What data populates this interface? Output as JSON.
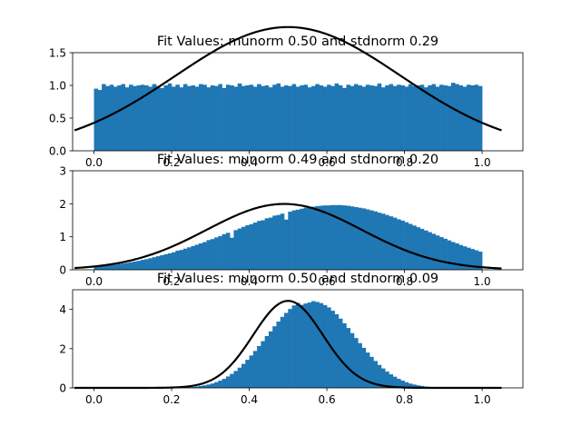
{
  "chart_data": [
    {
      "type": "bar",
      "subtype": "histogram-with-fit",
      "title": "Fit Values: munorm 0.50 and stdnorm 0.29",
      "mu": 0.5,
      "sigma": 0.29,
      "fit_scale": 1.375,
      "xlim": [
        -0.055,
        1.105
      ],
      "ylim": [
        0,
        1.5
      ],
      "xticks": [
        0.0,
        0.2,
        0.4,
        0.6,
        0.8,
        1.0
      ],
      "xtick_labels": [
        "0.0",
        "0.2",
        "0.4",
        "0.6",
        "0.8",
        "1.0"
      ],
      "yticks": [
        0.0,
        0.5,
        1.0,
        1.5
      ],
      "ytick_labels": [
        "0.0",
        "0.5",
        "1.0",
        "1.5"
      ],
      "bins": {
        "start": 0.0,
        "width": 0.01
      },
      "values": [
        0.95,
        0.93,
        1.02,
        0.99,
        1.01,
        0.98,
        1.0,
        1.02,
        0.97,
        1.01,
        0.99,
        1.0,
        1.01,
        1.0,
        0.98,
        1.02,
        0.99,
        0.96,
        1.0,
        1.03,
        0.98,
        1.01,
        0.97,
        1.02,
        0.99,
        1.0,
        0.98,
        1.02,
        1.01,
        0.97,
        1.0,
        0.99,
        1.02,
        0.96,
        1.01,
        1.0,
        0.98,
        1.03,
        0.99,
        1.0,
        1.01,
        0.98,
        1.02,
        0.99,
        1.0,
        0.97,
        1.01,
        1.03,
        0.98,
        1.0,
        0.99,
        1.02,
        0.98,
        1.0,
        1.01,
        0.97,
        0.99,
        1.02,
        1.0,
        0.98,
        1.01,
        0.99,
        1.03,
        1.0,
        0.96,
        1.01,
        0.99,
        1.02,
        1.0,
        0.98,
        1.01,
        1.0,
        0.99,
        1.03,
        0.97,
        1.0,
        1.02,
        0.99,
        1.01,
        1.0,
        0.98,
        1.02,
        0.99,
        1.0,
        1.01,
        0.97,
        1.0,
        1.02,
        0.98,
        1.01,
        1.0,
        0.99,
        1.04,
        1.02,
        1.0,
        0.98,
        1.01,
        1.0,
        1.01,
        0.99
      ]
    },
    {
      "type": "bar",
      "subtype": "histogram-with-fit",
      "title": "Fit Values: munorm 0.49 and stdnorm 0.20",
      "mu": 0.49,
      "sigma": 0.2,
      "fit_scale": 1.0,
      "xlim": [
        -0.055,
        1.105
      ],
      "ylim": [
        0,
        3
      ],
      "xticks": [
        0.0,
        0.2,
        0.4,
        0.6,
        0.8,
        1.0
      ],
      "xtick_labels": [
        "0.0",
        "0.2",
        "0.4",
        "0.6",
        "0.8",
        "1.0"
      ],
      "yticks": [
        0,
        1,
        2,
        3
      ],
      "ytick_labels": [
        "0",
        "1",
        "2",
        "3"
      ],
      "bins": {
        "start": 0.0,
        "width": 0.01
      },
      "values": [
        0.09,
        0.1,
        0.11,
        0.13,
        0.14,
        0.16,
        0.18,
        0.19,
        0.21,
        0.23,
        0.25,
        0.27,
        0.3,
        0.32,
        0.35,
        0.38,
        0.41,
        0.44,
        0.47,
        0.5,
        0.53,
        0.58,
        0.6,
        0.64,
        0.68,
        0.72,
        0.76,
        0.8,
        0.84,
        0.9,
        0.93,
        0.98,
        1.02,
        1.08,
        1.12,
        0.97,
        1.2,
        1.25,
        1.3,
        1.35,
        1.38,
        1.43,
        1.48,
        1.5,
        1.56,
        1.58,
        1.64,
        1.66,
        1.7,
        1.52,
        1.76,
        1.8,
        1.82,
        1.85,
        1.88,
        1.9,
        1.91,
        1.93,
        1.94,
        1.95,
        1.95,
        1.96,
        1.96,
        1.96,
        1.95,
        1.94,
        1.92,
        1.9,
        1.88,
        1.86,
        1.83,
        1.8,
        1.77,
        1.73,
        1.7,
        1.66,
        1.62,
        1.58,
        1.53,
        1.49,
        1.44,
        1.39,
        1.34,
        1.29,
        1.24,
        1.19,
        1.14,
        1.09,
        1.04,
        0.99,
        0.94,
        0.89,
        0.84,
        0.8,
        0.75,
        0.71,
        0.67,
        0.63,
        0.59,
        0.55
      ]
    },
    {
      "type": "bar",
      "subtype": "histogram-with-fit",
      "title": "Fit Values: munorm 0.50 and stdnorm 0.09",
      "mu": 0.5,
      "sigma": 0.09,
      "fit_scale": 1.0,
      "xlim": [
        -0.055,
        1.105
      ],
      "ylim": [
        0,
        5
      ],
      "xticks": [
        0.0,
        0.2,
        0.4,
        0.6,
        0.8,
        1.0
      ],
      "xtick_labels": [
        "0.0",
        "0.2",
        "0.4",
        "0.6",
        "0.8",
        "1.0"
      ],
      "yticks": [
        0,
        2,
        4
      ],
      "ytick_labels": [
        "0",
        "2",
        "4"
      ],
      "bins": {
        "start": 0.0,
        "width": 0.01
      },
      "values": [
        0.0,
        0.0,
        0.0,
        0.0,
        0.0,
        0.0,
        0.0,
        0.0,
        0.0,
        0.0,
        0.0,
        0.0,
        0.0,
        0.0,
        0.0,
        0.0,
        0.0,
        0.0,
        0.0,
        0.01,
        0.01,
        0.01,
        0.02,
        0.03,
        0.04,
        0.05,
        0.07,
        0.1,
        0.13,
        0.17,
        0.22,
        0.29,
        0.37,
        0.46,
        0.58,
        0.71,
        0.86,
        1.03,
        1.22,
        1.43,
        1.65,
        1.88,
        2.13,
        2.38,
        2.64,
        2.88,
        3.14,
        3.38,
        3.62,
        3.82,
        4.02,
        4.2,
        4.33,
        4.23,
        4.3,
        4.35,
        4.42,
        4.38,
        4.32,
        4.22,
        4.1,
        3.93,
        3.75,
        3.53,
        3.29,
        3.05,
        2.79,
        2.54,
        2.28,
        2.04,
        1.8,
        1.58,
        1.37,
        1.17,
        0.99,
        0.83,
        0.69,
        0.57,
        0.46,
        0.37,
        0.29,
        0.22,
        0.17,
        0.13,
        0.1,
        0.07,
        0.05,
        0.04,
        0.03,
        0.02,
        0.01,
        0.01,
        0.01,
        0.0,
        0.0,
        0.0,
        0.0,
        0.0,
        0.0,
        0.0
      ]
    }
  ],
  "colors": {
    "bar": "#1f77b4",
    "fit_line": "#000000",
    "axes": "#000000"
  }
}
